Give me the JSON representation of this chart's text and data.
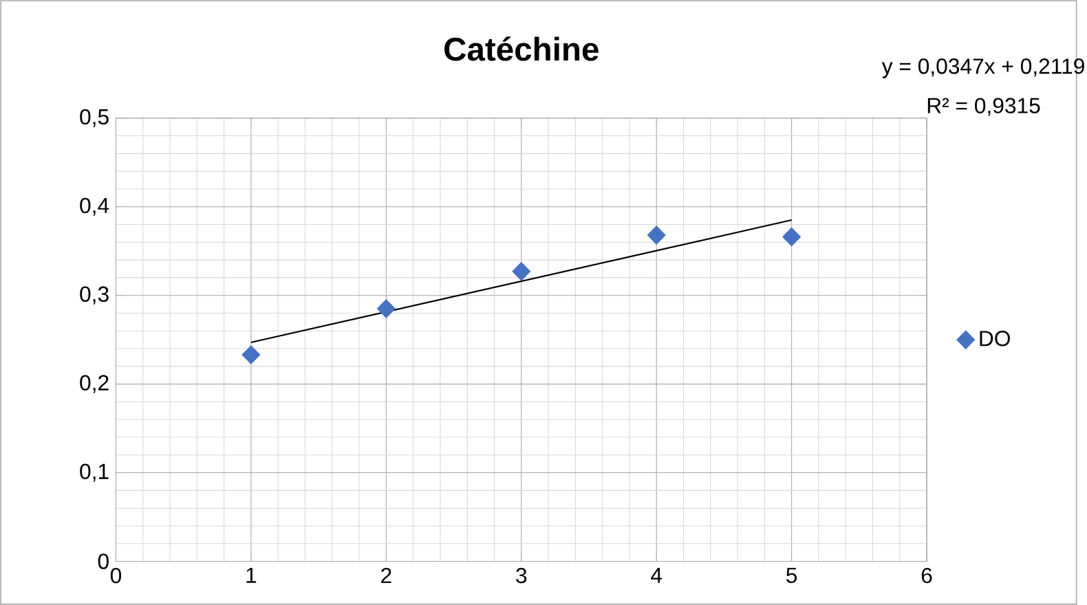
{
  "chart_data": {
    "type": "scatter",
    "title": "Catéchine",
    "x": [
      1,
      2,
      3,
      4,
      5
    ],
    "series": [
      {
        "name": "DO",
        "color": "#4472c4",
        "marker": "diamond",
        "values": [
          0.233,
          0.285,
          0.327,
          0.368,
          0.366
        ]
      },
      {
        "type": "line",
        "color": "#000000",
        "marker": "none",
        "x": [
          1,
          5
        ],
        "values": [
          0.247,
          0.385
        ]
      }
    ],
    "xlim": [
      0,
      6
    ],
    "xticks": [
      0,
      1,
      2,
      3,
      4,
      5,
      6
    ],
    "ylim": [
      0,
      0.5
    ],
    "yticks": [
      0,
      {
        "value": 0.1,
        "label": "0,1"
      },
      {
        "value": 0.2,
        "label": "0,2"
      },
      {
        "value": 0.3,
        "label": "0,3"
      },
      {
        "value": 0.4,
        "label": "0,4"
      },
      {
        "value": 0.5,
        "label": "0,5"
      }
    ],
    "grid": true,
    "legend": "right",
    "annotations": [
      "y = 0,0347x + 0,2119",
      "R² = 0,9315"
    ]
  }
}
